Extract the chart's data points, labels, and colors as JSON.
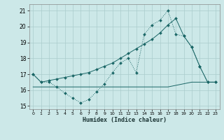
{
  "title": "",
  "xlabel": "Humidex (Indice chaleur)",
  "background_color": "#cce8e8",
  "grid_color": "#aacccc",
  "line_color": "#1a6666",
  "xlim": [
    -0.5,
    23.5
  ],
  "ylim": [
    14.8,
    21.4
  ],
  "yticks": [
    15,
    16,
    17,
    18,
    19,
    20,
    21
  ],
  "xticks": [
    0,
    1,
    2,
    3,
    4,
    5,
    6,
    7,
    8,
    9,
    10,
    11,
    12,
    13,
    14,
    15,
    16,
    17,
    18,
    19,
    20,
    21,
    22,
    23
  ],
  "series1_x": [
    0,
    1,
    2,
    3,
    4,
    5,
    6,
    7,
    8,
    9,
    10,
    11,
    12,
    13,
    14,
    15,
    16,
    17,
    18,
    19,
    20,
    21,
    22,
    23
  ],
  "series1_y": [
    17.0,
    16.5,
    16.5,
    16.2,
    15.8,
    15.5,
    15.2,
    15.4,
    15.9,
    16.4,
    17.1,
    17.7,
    18.0,
    17.1,
    19.5,
    20.1,
    20.4,
    21.0,
    19.5,
    19.4,
    18.7,
    17.5,
    16.5,
    16.5
  ],
  "series2_x": [
    0,
    1,
    2,
    3,
    4,
    5,
    6,
    7,
    8,
    9,
    10,
    11,
    12,
    13,
    14,
    15,
    16,
    17,
    18,
    19,
    20,
    21,
    22,
    23
  ],
  "series2_y": [
    17.0,
    16.5,
    16.6,
    16.7,
    16.8,
    16.9,
    17.0,
    17.1,
    17.3,
    17.5,
    17.7,
    18.0,
    18.3,
    18.6,
    18.9,
    19.2,
    19.6,
    20.1,
    20.5,
    19.4,
    18.7,
    17.5,
    16.5,
    16.5
  ],
  "series3_x": [
    0,
    1,
    2,
    3,
    4,
    5,
    6,
    7,
    8,
    9,
    10,
    11,
    12,
    13,
    14,
    15,
    16,
    17,
    18,
    19,
    20,
    21,
    22,
    23
  ],
  "series3_y": [
    16.2,
    16.2,
    16.2,
    16.2,
    16.2,
    16.2,
    16.2,
    16.2,
    16.2,
    16.2,
    16.2,
    16.2,
    16.2,
    16.2,
    16.2,
    16.2,
    16.2,
    16.2,
    16.3,
    16.4,
    16.5,
    16.5,
    16.5,
    16.5
  ]
}
